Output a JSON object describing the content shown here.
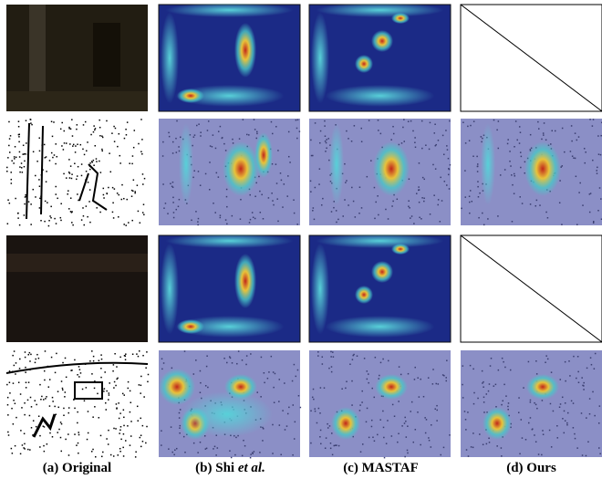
{
  "figure": {
    "captions": [
      {
        "parts": [
          "(a) Original"
        ]
      },
      {
        "parts": [
          "(b) Shi",
          "et al."
        ]
      },
      {
        "parts": [
          "(c) MASTAF"
        ]
      },
      {
        "parts": [
          "(d) Ours"
        ]
      }
    ]
  }
}
